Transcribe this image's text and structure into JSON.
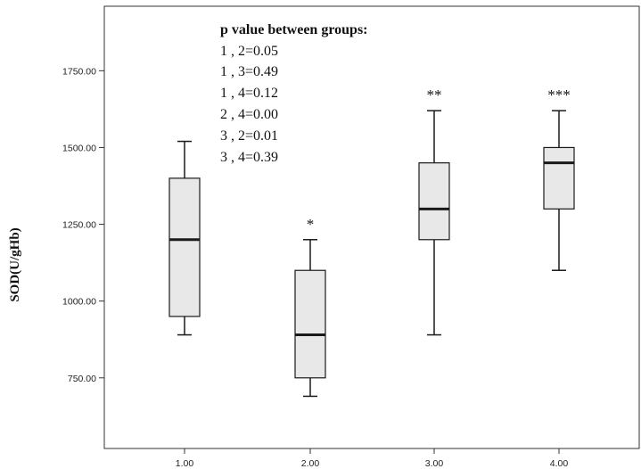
{
  "chart_data": {
    "type": "box",
    "ylabel": "SOD(U/gHb)",
    "xlabel": "",
    "ylim": [
      520,
      1960
    ],
    "y_ticks": [
      "750.00",
      "1000.00",
      "1250.00",
      "1500.00",
      "1750.00"
    ],
    "y_tick_values": [
      750,
      1000,
      1250,
      1500,
      1750
    ],
    "categories": [
      "1.00",
      "2.00",
      "3.00",
      "4.00"
    ],
    "boxes": [
      {
        "category": "1.00",
        "min": 890,
        "q1": 950,
        "median": 1200,
        "q3": 1400,
        "max": 1520,
        "mark": ""
      },
      {
        "category": "2.00",
        "min": 690,
        "q1": 750,
        "median": 890,
        "q3": 1100,
        "max": 1200,
        "mark": "*"
      },
      {
        "category": "3.00",
        "min": 890,
        "q1": 1200,
        "median": 1300,
        "q3": 1450,
        "max": 1620,
        "mark": "**"
      },
      {
        "category": "4.00",
        "min": 1100,
        "q1": 1300,
        "median": 1450,
        "q3": 1500,
        "max": 1620,
        "mark": "***"
      }
    ],
    "annotation": {
      "title": "p value between groups:",
      "lines": [
        "1 , 2=0.05",
        "1 , 3=0.49",
        "1 , 4=0.12",
        "2 , 4=0.00",
        "3 , 2=0.01",
        "3 , 4=0.39"
      ]
    },
    "colors": {
      "box_fill": "#e8e8e8",
      "stroke": "#1a1a1a",
      "axis": "#333333"
    },
    "grid": false,
    "legend": "none"
  }
}
